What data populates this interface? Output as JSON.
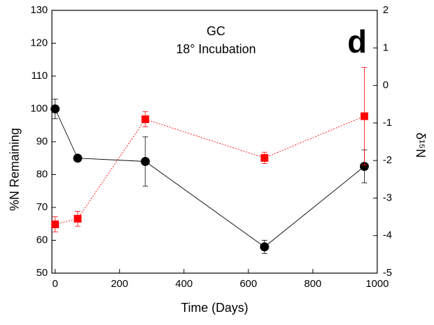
{
  "chart_data": {
    "type": "line",
    "title": "GC",
    "subtitle": "18° Incubation",
    "annotation": "d",
    "x_label": "Time (Days)",
    "y_label": "%N Remaining",
    "y2_label": "δ¹⁵N",
    "x": [
      0,
      70,
      280,
      650,
      960
    ],
    "xlim": [
      -10,
      1000
    ],
    "xticks": [
      0,
      200,
      400,
      600,
      800,
      1000
    ],
    "ylim": [
      50,
      130
    ],
    "yticks": [
      50,
      60,
      70,
      80,
      90,
      100,
      110,
      120,
      130
    ],
    "y2lim": [
      -5,
      2
    ],
    "y2ticks": [
      -5,
      -4,
      -3,
      -2,
      -1,
      0,
      1,
      2
    ],
    "series": [
      {
        "name": "%N Remaining",
        "color": "#000000",
        "marker": "circle",
        "line_style": "solid",
        "values": [
          100,
          85,
          84,
          58,
          82.5
        ],
        "errors": [
          3,
          0.5,
          7.5,
          2,
          5
        ]
      },
      {
        "name": "δ15N",
        "color": "#ff0000",
        "marker": "square",
        "line_style": "dotted",
        "axis": "y2",
        "values": [
          -3.7,
          -3.55,
          -0.9,
          -1.93,
          -0.82
        ],
        "errors": [
          0.2,
          0.2,
          0.2,
          0.15,
          1.3
        ]
      }
    ]
  }
}
